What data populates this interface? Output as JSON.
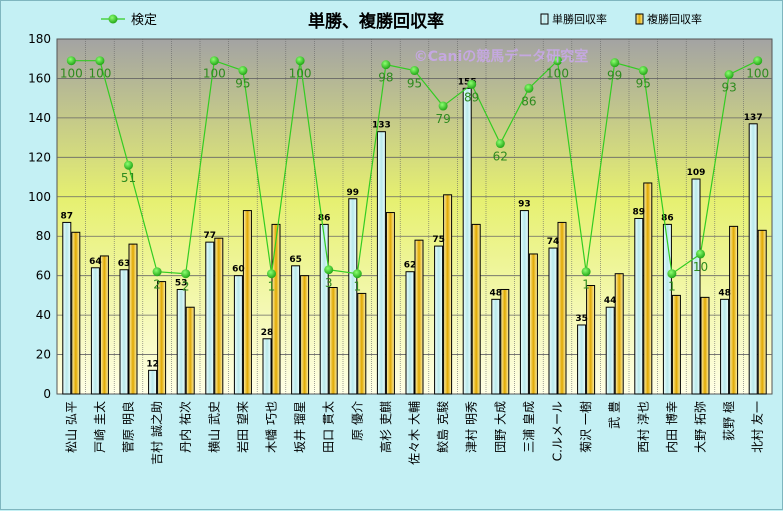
{
  "chart_data": {
    "type": "bar",
    "title": "単勝、複勝回収率",
    "watermark": "©Caniの競馬データ研究室",
    "ylim": [
      0,
      180
    ],
    "yticks": [
      0,
      20,
      40,
      60,
      80,
      100,
      120,
      140,
      160,
      180
    ],
    "grid": true,
    "legend": "top",
    "categories": [
      "松山 弘平",
      "戸崎 圭太",
      "菅原 明良",
      "吉村 誠之助",
      "丹内 祐次",
      "横山 武史",
      "岩田 望来",
      "木幡 巧也",
      "坂井 瑠星",
      "田口 貫太",
      "原 優介",
      "高杉 吏麒",
      "佐々木 大輔",
      "鮫島 克駿",
      "津村 明秀",
      "団野 大成",
      "三浦 皇成",
      "C.ルメール",
      "菊沢 一樹",
      "武 豊",
      "西村 淳也",
      "内田 博幸",
      "大野 拓弥",
      "荻野 極",
      "北村 友一"
    ],
    "series": [
      {
        "name": "単勝回収率",
        "color": "#c9f0f0",
        "values": [
          87,
          64,
          63,
          12,
          53,
          77,
          60,
          28,
          65,
          86,
          99,
          133,
          62,
          75,
          155,
          48,
          93,
          74,
          35,
          44,
          89,
          86,
          109,
          48,
          137
        ]
      },
      {
        "name": "複勝回収率",
        "color": "#e8b400",
        "values": [
          82,
          70,
          76,
          57,
          44,
          79,
          93,
          86,
          60,
          54,
          51,
          92,
          78,
          101,
          86,
          53,
          71,
          87,
          55,
          61,
          107,
          50,
          49,
          85,
          83
        ]
      },
      {
        "name": "検定",
        "color": "#33cc22",
        "values": [
          100,
          100,
          51,
          2,
          2,
          100,
          95,
          1,
          100,
          3,
          1,
          98,
          95,
          79,
          89,
          62,
          86,
          100,
          1,
          99,
          95,
          1,
          10,
          93,
          100
        ]
      }
    ],
    "kentei_plot": [
      169,
      169,
      116,
      62,
      61,
      169,
      164,
      61,
      169,
      63,
      61,
      167,
      164,
      146,
      157,
      127,
      155,
      169,
      62,
      168,
      164,
      61,
      71,
      162,
      169
    ]
  }
}
